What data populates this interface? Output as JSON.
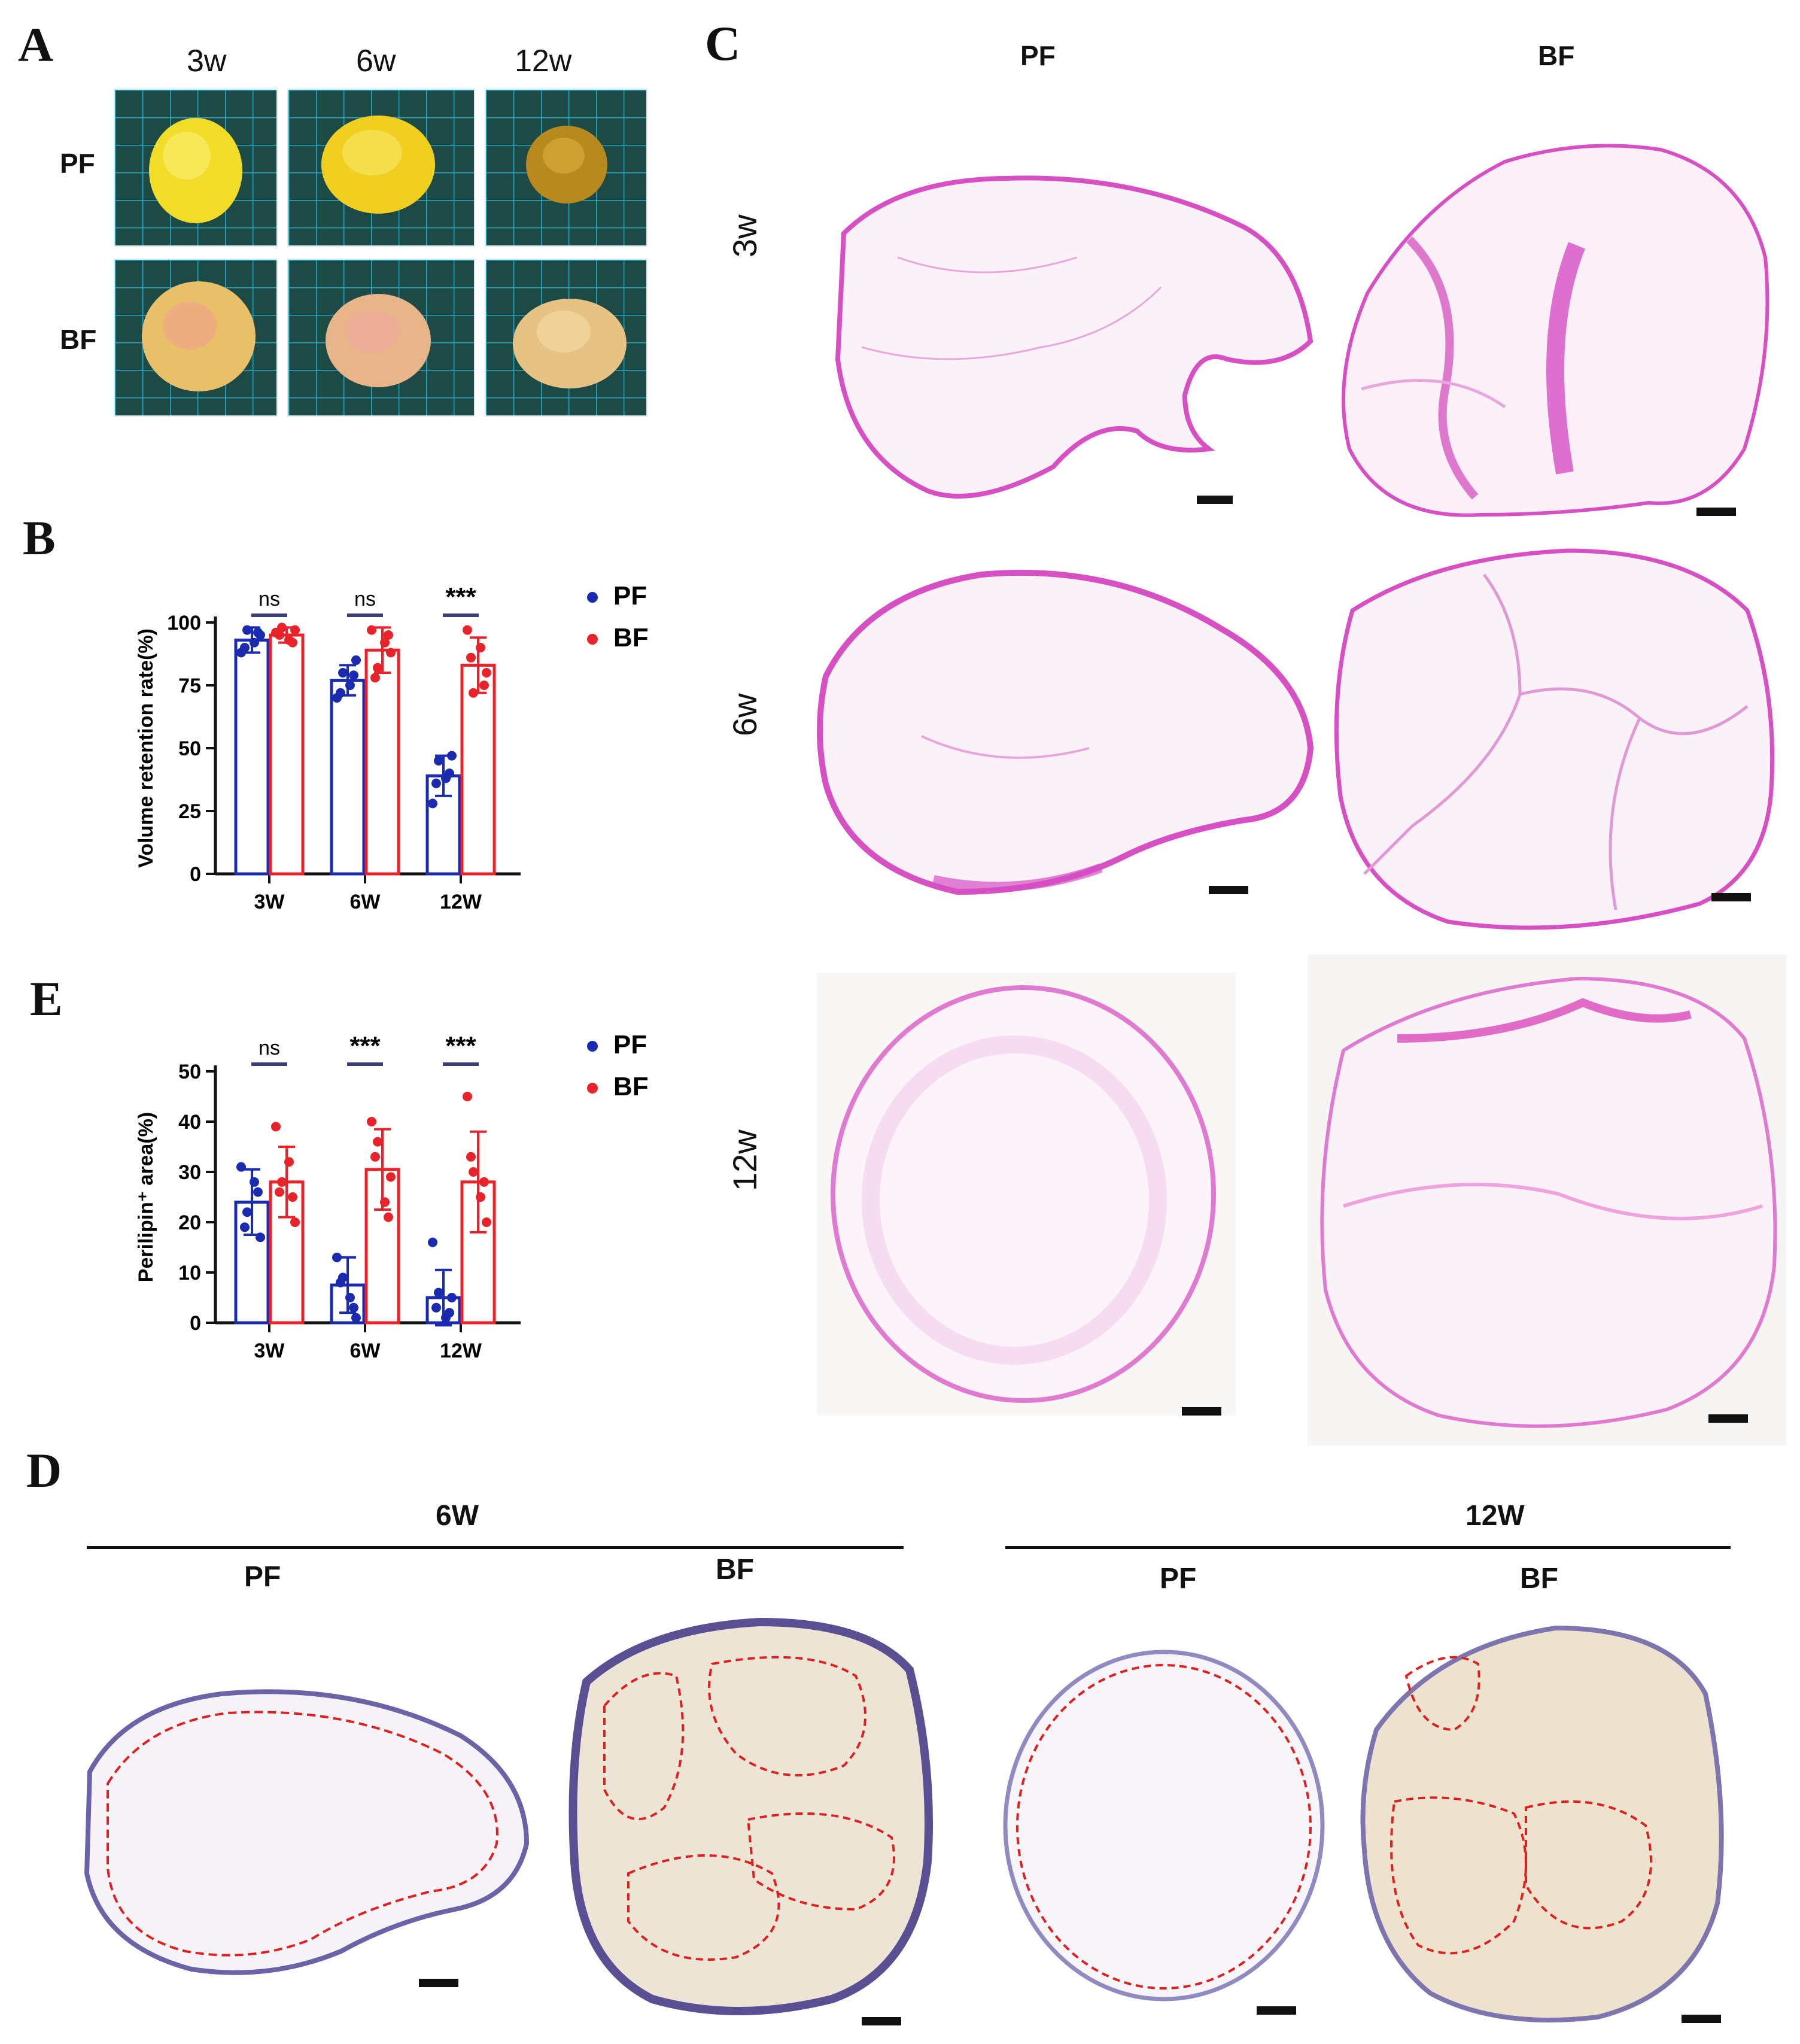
{
  "panels": {
    "A": {
      "letter": "A",
      "columns": [
        "3w",
        "6w",
        "12w"
      ],
      "rows": [
        "PF",
        "BF"
      ]
    },
    "B": {
      "letter": "B",
      "legend": [
        "PF",
        "BF"
      ],
      "sig_labels": [
        "ns",
        "ns",
        "***"
      ]
    },
    "E": {
      "letter": "E",
      "legend": [
        "PF",
        "BF"
      ],
      "sig_labels": [
        "ns",
        "***",
        "***"
      ]
    },
    "C": {
      "letter": "C",
      "columns": [
        "PF",
        "BF"
      ],
      "rows": [
        "3w",
        "6w",
        "12w"
      ]
    },
    "D": {
      "letter": "D",
      "groups": [
        "6W",
        "12W"
      ],
      "subcolumns": [
        "PF",
        "BF",
        "PF",
        "BF"
      ]
    }
  },
  "colors": {
    "pf": "#1a2bb0",
    "bf": "#e8232a",
    "he_stain": "#d64fc3",
    "ihc_stain": "#6b63a8",
    "dashed_outline": "#e0201f"
  },
  "chart_data": [
    {
      "type": "bar",
      "panel": "B",
      "categories": [
        "3W",
        "6W",
        "12W"
      ],
      "ylabel": "Volume retention rate(%)",
      "ylim": [
        0,
        100
      ],
      "yticks": [
        0,
        25,
        50,
        75,
        100
      ],
      "series": [
        {
          "name": "PF",
          "values": [
            93,
            77,
            39
          ],
          "sd": [
            5,
            6,
            8
          ],
          "points": [
            [
              88,
              97,
              92,
              95,
              90,
              96
            ],
            [
              70,
              80,
              75,
              85,
              72,
              79
            ],
            [
              28,
              45,
              38,
              47,
              36,
              40
            ]
          ]
        },
        {
          "name": "BF",
          "values": [
            95,
            89,
            83
          ],
          "sd": [
            3,
            9,
            11
          ],
          "points": [
            [
              96,
              98,
              93,
              97,
              95,
              92
            ],
            [
              97,
              82,
              92,
              88,
              78,
              95
            ],
            [
              97,
              72,
              90,
              80,
              86,
              75
            ]
          ]
        }
      ],
      "significance": [
        "ns",
        "ns",
        "***"
      ]
    },
    {
      "type": "bar",
      "panel": "E",
      "categories": [
        "3W",
        "6W",
        "12W"
      ],
      "ylabel": "Perilipin⁺ area(%)",
      "ylim": [
        0,
        50
      ],
      "yticks": [
        0,
        10,
        20,
        30,
        40,
        50
      ],
      "series": [
        {
          "name": "PF",
          "values": [
            24,
            7.5,
            5
          ],
          "sd": [
            6.5,
            5.5,
            5.5
          ],
          "points": [
            [
              31,
              22,
              28,
              17,
              19,
              26
            ],
            [
              13,
              9,
              5,
              1,
              8,
              3
            ],
            [
              16,
              6,
              1,
              5,
              3,
              2
            ]
          ]
        },
        {
          "name": "BF",
          "values": [
            28,
            30.5,
            28
          ],
          "sd": [
            7,
            8,
            10
          ],
          "points": [
            [
              39,
              28,
              32,
              20,
              26,
              25
            ],
            [
              40,
              36,
              24,
              29,
              33,
              21
            ],
            [
              45,
              30,
              25,
              20,
              33,
              28
            ]
          ]
        }
      ],
      "significance": [
        "ns",
        "***",
        "***"
      ]
    }
  ]
}
